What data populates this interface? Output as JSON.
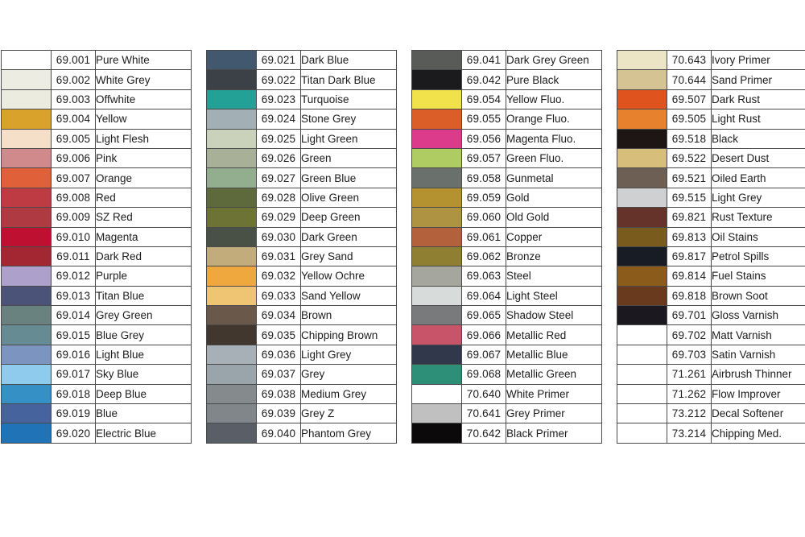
{
  "page": {
    "background": "#ffffff",
    "text_color": "#1c1c1c",
    "border_color": "#4a4a4a"
  },
  "chart_data": {
    "type": "table",
    "columns": [
      "color-swatch",
      "code",
      "name"
    ],
    "legend_position": "none",
    "tables": [
      {
        "rows": [
          {
            "code": "69.001",
            "name": "Pure White",
            "swatch": "#ffffff"
          },
          {
            "code": "69.002",
            "name": "White Grey",
            "swatch": "#edece2"
          },
          {
            "code": "69.003",
            "name": "Offwhite",
            "swatch": "#ecebe0"
          },
          {
            "code": "69.004",
            "name": "Yellow",
            "swatch": "#d9a32b"
          },
          {
            "code": "69.005",
            "name": "Light Flesh",
            "swatch": "#f6dfc9"
          },
          {
            "code": "69.006",
            "name": "Pink",
            "swatch": "#d18a8c"
          },
          {
            "code": "69.007",
            "name": "Orange",
            "swatch": "#e0603a"
          },
          {
            "code": "69.008",
            "name": "Red",
            "swatch": "#bf3b43"
          },
          {
            "code": "69.009",
            "name": "SZ Red",
            "swatch": "#b03a41"
          },
          {
            "code": "69.010",
            "name": "Magenta",
            "swatch": "#be1131"
          },
          {
            "code": "69.011",
            "name": "Dark Red",
            "swatch": "#a32633"
          },
          {
            "code": "69.012",
            "name": "Purple",
            "swatch": "#ada0cb"
          },
          {
            "code": "69.013",
            "name": "Titan Blue",
            "swatch": "#4c5378"
          },
          {
            "code": "69.014",
            "name": "Grey Green",
            "swatch": "#69827f"
          },
          {
            "code": "69.015",
            "name": "Blue Grey",
            "swatch": "#678b93"
          },
          {
            "code": "69.016",
            "name": "Light Blue",
            "swatch": "#7b94c0"
          },
          {
            "code": "69.017",
            "name": "Sky Blue",
            "swatch": "#8ecbec"
          },
          {
            "code": "69.018",
            "name": "Deep Blue",
            "swatch": "#3591c5"
          },
          {
            "code": "69.019",
            "name": "Blue",
            "swatch": "#47639e"
          },
          {
            "code": "69.020",
            "name": "Electric Blue",
            "swatch": "#2173b7"
          }
        ]
      },
      {
        "rows": [
          {
            "code": "69.021",
            "name": "Dark Blue",
            "swatch": "#41586f"
          },
          {
            "code": "69.022",
            "name": "Titan Dark Blue",
            "swatch": "#3b4147"
          },
          {
            "code": "69.023",
            "name": "Turquoise",
            "swatch": "#23a197"
          },
          {
            "code": "69.024",
            "name": "Stone Grey",
            "swatch": "#a2afb4"
          },
          {
            "code": "69.025",
            "name": "Light Green",
            "swatch": "#cbd2bc"
          },
          {
            "code": "69.026",
            "name": "Green",
            "swatch": "#a9b098"
          },
          {
            "code": "69.027",
            "name": "Green Blue",
            "swatch": "#93ae8e"
          },
          {
            "code": "69.028",
            "name": "Olive Green",
            "swatch": "#5e6a3c"
          },
          {
            "code": "69.029",
            "name": "Deep Green",
            "swatch": "#6d7334"
          },
          {
            "code": "69.030",
            "name": "Dark Green",
            "swatch": "#495045"
          },
          {
            "code": "69.031",
            "name": "Grey Sand",
            "swatch": "#c2ac7b"
          },
          {
            "code": "69.032",
            "name": "Yellow Ochre",
            "swatch": "#eea83d"
          },
          {
            "code": "69.033",
            "name": "Sand Yellow",
            "swatch": "#efc573"
          },
          {
            "code": "69.034",
            "name": "Brown",
            "swatch": "#6a594a"
          },
          {
            "code": "69.035",
            "name": "Chipping Brown",
            "swatch": "#41372e"
          },
          {
            "code": "69.036",
            "name": "Light Grey",
            "swatch": "#a7b0b6"
          },
          {
            "code": "69.037",
            "name": "Grey",
            "swatch": "#9aa5ab"
          },
          {
            "code": "69.038",
            "name": "Medium Grey",
            "swatch": "#858b8d"
          },
          {
            "code": "69.039",
            "name": "Grey Z",
            "swatch": "#81868a"
          },
          {
            "code": "69.040",
            "name": "Phantom Grey",
            "swatch": "#5a5f67"
          }
        ]
      },
      {
        "rows": [
          {
            "code": "69.041",
            "name": "Dark Grey Green",
            "swatch": "#585b58"
          },
          {
            "code": "69.042",
            "name": "Pure Black",
            "swatch": "#1b1b1d"
          },
          {
            "code": "69.054",
            "name": "Yellow Fluo.",
            "swatch": "#f1e14b"
          },
          {
            "code": "69.055",
            "name": "Orange Fluo.",
            "swatch": "#db5d27"
          },
          {
            "code": "69.056",
            "name": "Magenta Fluo.",
            "swatch": "#dc3b8b"
          },
          {
            "code": "69.057",
            "name": "Green Fluo.",
            "swatch": "#aecc61"
          },
          {
            "code": "69.058",
            "name": "Gunmetal",
            "swatch": "#6a706b"
          },
          {
            "code": "69.059",
            "name": "Gold",
            "swatch": "#b3922f"
          },
          {
            "code": "69.060",
            "name": "Old Gold",
            "swatch": "#ad9342"
          },
          {
            "code": "69.061",
            "name": "Copper",
            "swatch": "#b3603c"
          },
          {
            "code": "69.062",
            "name": "Bronze",
            "swatch": "#8f7f33"
          },
          {
            "code": "69.063",
            "name": "Steel",
            "swatch": "#a5a69e"
          },
          {
            "code": "69.064",
            "name": "Light Steel",
            "swatch": "#d7dbd9"
          },
          {
            "code": "69.065",
            "name": "Shadow Steel",
            "swatch": "#797a7b"
          },
          {
            "code": "69.066",
            "name": "Metallic Red",
            "swatch": "#c75469"
          },
          {
            "code": "69.067",
            "name": "Metallic Blue",
            "swatch": "#31384b"
          },
          {
            "code": "69.068",
            "name": "Metallic Green",
            "swatch": "#2d8f77"
          },
          {
            "code": "70.640",
            "name": "White Primer",
            "swatch": "#ffffff"
          },
          {
            "code": "70.641",
            "name": "Grey Primer",
            "swatch": "#bfc0bf"
          },
          {
            "code": "70.642",
            "name": "Black Primer",
            "swatch": "#0b090a"
          }
        ]
      },
      {
        "rows": [
          {
            "code": "70.643",
            "name": "Ivory Primer",
            "swatch": "#ece5c5"
          },
          {
            "code": "70.644",
            "name": "Sand Primer",
            "swatch": "#d5c393"
          },
          {
            "code": "69.507",
            "name": "Dark Rust",
            "swatch": "#df531f"
          },
          {
            "code": "69.505",
            "name": "Light Rust",
            "swatch": "#e7812d"
          },
          {
            "code": "69.518",
            "name": "Black",
            "swatch": "#1d1615"
          },
          {
            "code": "69.522",
            "name": "Desert Dust",
            "swatch": "#d7bf7b"
          },
          {
            "code": "69.521",
            "name": "Oiled Earth",
            "swatch": "#6d5f53"
          },
          {
            "code": "69.515",
            "name": "Light Grey",
            "swatch": "#ced0d1"
          },
          {
            "code": "69.821",
            "name": "Rust Texture",
            "swatch": "#653329"
          },
          {
            "code": "69.813",
            "name": "Oil Stains",
            "swatch": "#795b1d"
          },
          {
            "code": "69.817",
            "name": "Petrol Spills",
            "swatch": "#181c25"
          },
          {
            "code": "69.814",
            "name": "Fuel Stains",
            "swatch": "#8b5b1b"
          },
          {
            "code": "69.818",
            "name": "Brown Soot",
            "swatch": "#693a1d"
          },
          {
            "code": "69.701",
            "name": "Gloss Varnish",
            "swatch": "#1b191f"
          },
          {
            "code": "69.702",
            "name": "Matt Varnish",
            "swatch": "#ffffff"
          },
          {
            "code": "69.703",
            "name": "Satin Varnish",
            "swatch": "#ffffff"
          },
          {
            "code": "71.261",
            "name": "Airbrush Thinner",
            "swatch": "#ffffff"
          },
          {
            "code": "71.262",
            "name": "Flow Improver",
            "swatch": "#ffffff"
          },
          {
            "code": "73.212",
            "name": "Decal Softener",
            "swatch": "#ffffff"
          },
          {
            "code": "73.214",
            "name": "Chipping Med.",
            "swatch": "#ffffff"
          }
        ]
      }
    ]
  }
}
